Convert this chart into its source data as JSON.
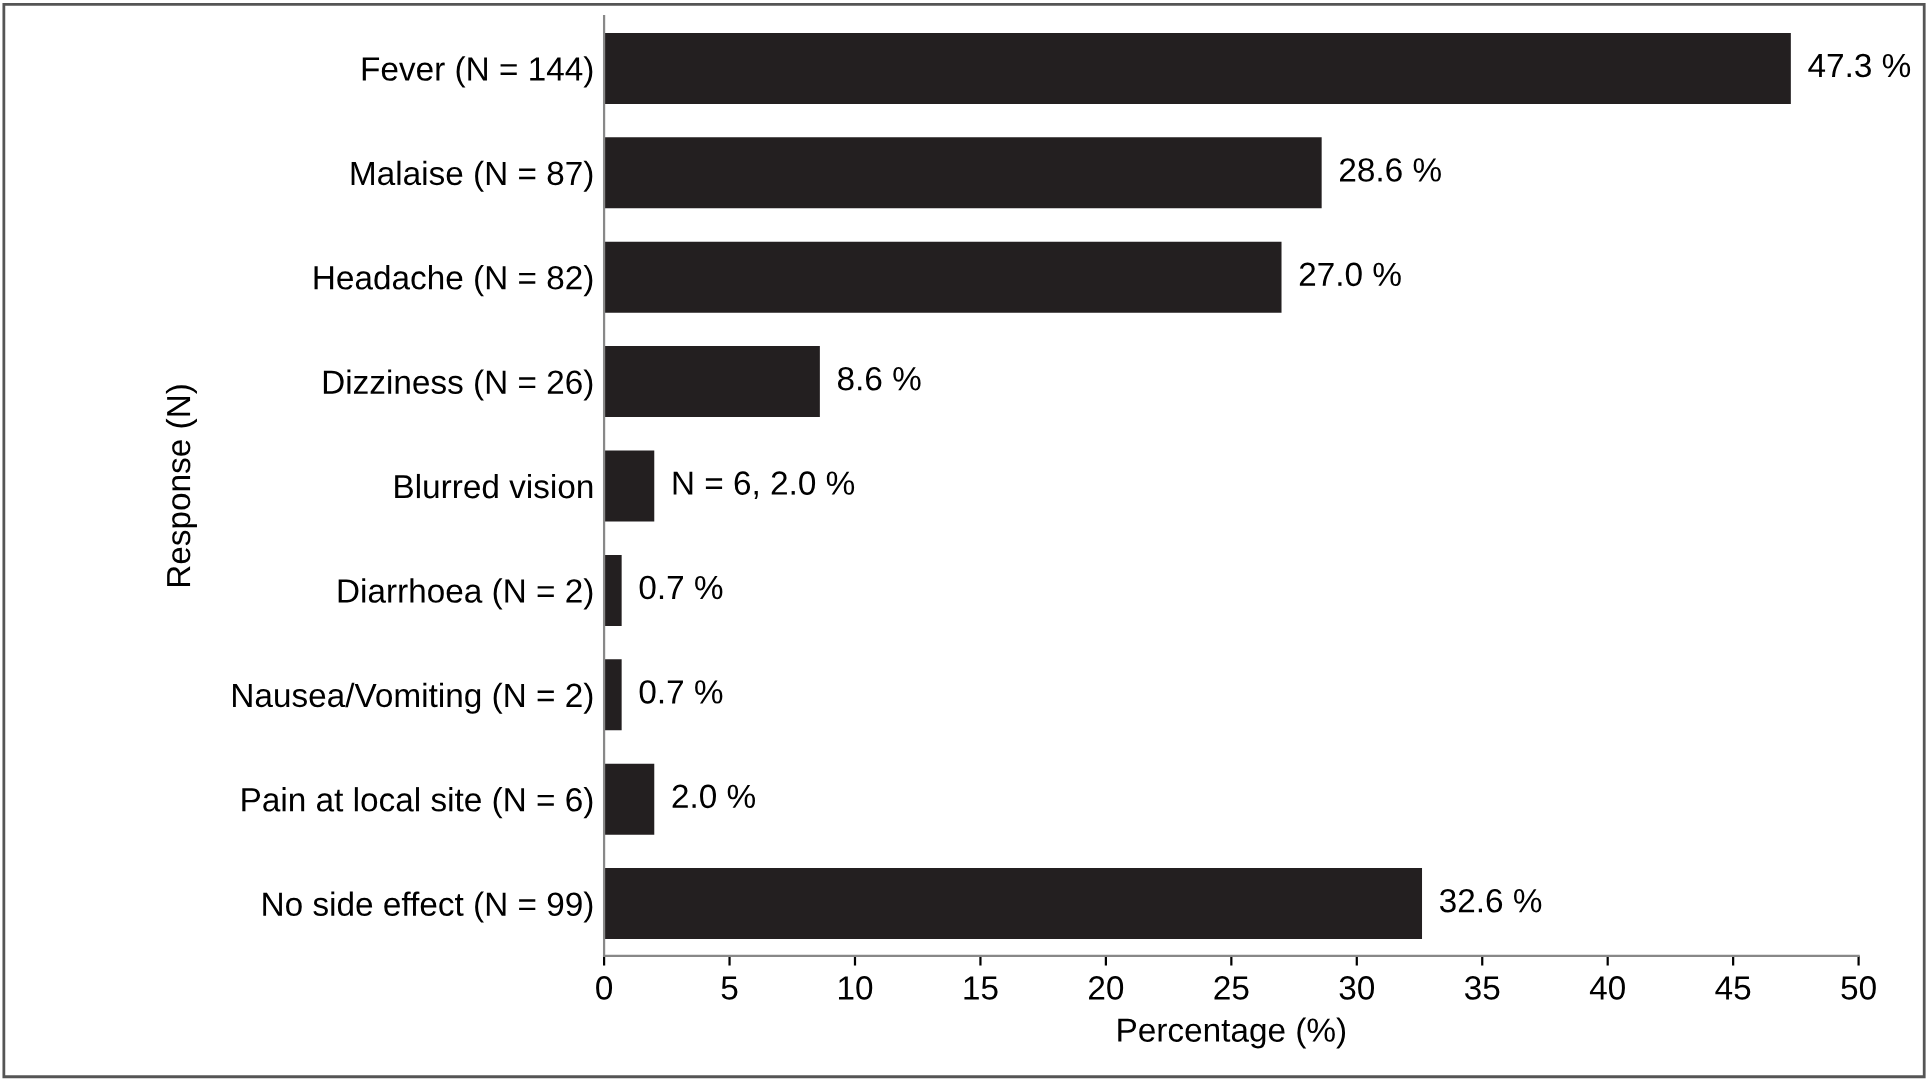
{
  "chart_data": {
    "type": "bar",
    "orientation": "horizontal",
    "xlabel": "Percentage (%)",
    "ylabel": "Response (N)",
    "categories": [
      "Fever (N = 144)",
      "Malaise (N = 87)",
      "Headache (N = 82)",
      "Dizziness (N = 26)",
      "Blurred vision",
      "Diarrhoea (N = 2)",
      "Nausea/Vomiting (N = 2)",
      "Pain at local site (N = 6)",
      "No side effect (N = 99)"
    ],
    "values": [
      47.3,
      28.6,
      27.0,
      8.6,
      2.0,
      0.7,
      0.7,
      2.0,
      32.6
    ],
    "value_labels": [
      "47.3 %",
      "28.6 %",
      "27.0 %",
      "8.6 %",
      "N = 6, 2.0 %",
      "0.7 %",
      "0.7 %",
      "2.0 %",
      "32.6 %"
    ],
    "color": "#231f20",
    "xlim": [
      0,
      50
    ],
    "xticks": [
      0,
      5,
      10,
      15,
      20,
      25,
      30,
      35,
      40,
      45,
      50
    ],
    "grid": false
  }
}
